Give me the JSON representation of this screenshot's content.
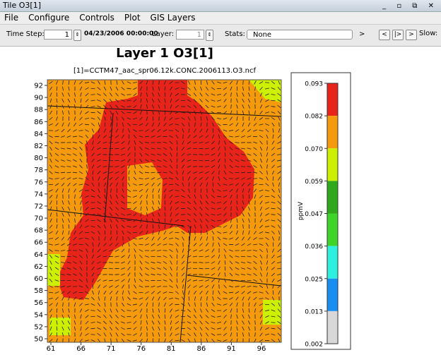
{
  "window": {
    "title": "Tile O3[1]"
  },
  "menu": [
    "File",
    "Configure",
    "Controls",
    "Plot",
    "GIS Layers"
  ],
  "toolbar": {
    "time_step_label": "Time Step:",
    "time_step": "1",
    "date": "04/23/2006 00:00:00",
    "layer_label": "Layer:",
    "layer": "1",
    "stats_label": "Stats:",
    "stats": "None",
    "next": ">",
    "buttons": [
      "<",
      "|>",
      ">"
    ],
    "slow_label": "Slow:"
  },
  "plot": {
    "title": "Layer 1 O3[1]",
    "subtitle": "[1]=CCTM47_aac_spr06.12k.CONC.2006113.O3.ncf",
    "xticks": [
      61,
      66,
      71,
      76,
      81,
      86,
      91,
      96
    ],
    "yticks": [
      50,
      52,
      54,
      56,
      58,
      60,
      62,
      64,
      66,
      68,
      70,
      72,
      74,
      76,
      78,
      80,
      82,
      84,
      86,
      88,
      90,
      92
    ],
    "legend": {
      "unit": "ppmV",
      "labels": [
        "0.093",
        "0.082",
        "0.070",
        "0.059",
        "0.047",
        "0.036",
        "0.025",
        "0.013",
        "0.002"
      ],
      "colors": [
        "#e8231a",
        "#f49a0c",
        "#ccf000",
        "#2fa81c",
        "#3fd42a",
        "#2ff0e0",
        "#1a8ef0",
        "#d8d8d8"
      ]
    }
  }
}
